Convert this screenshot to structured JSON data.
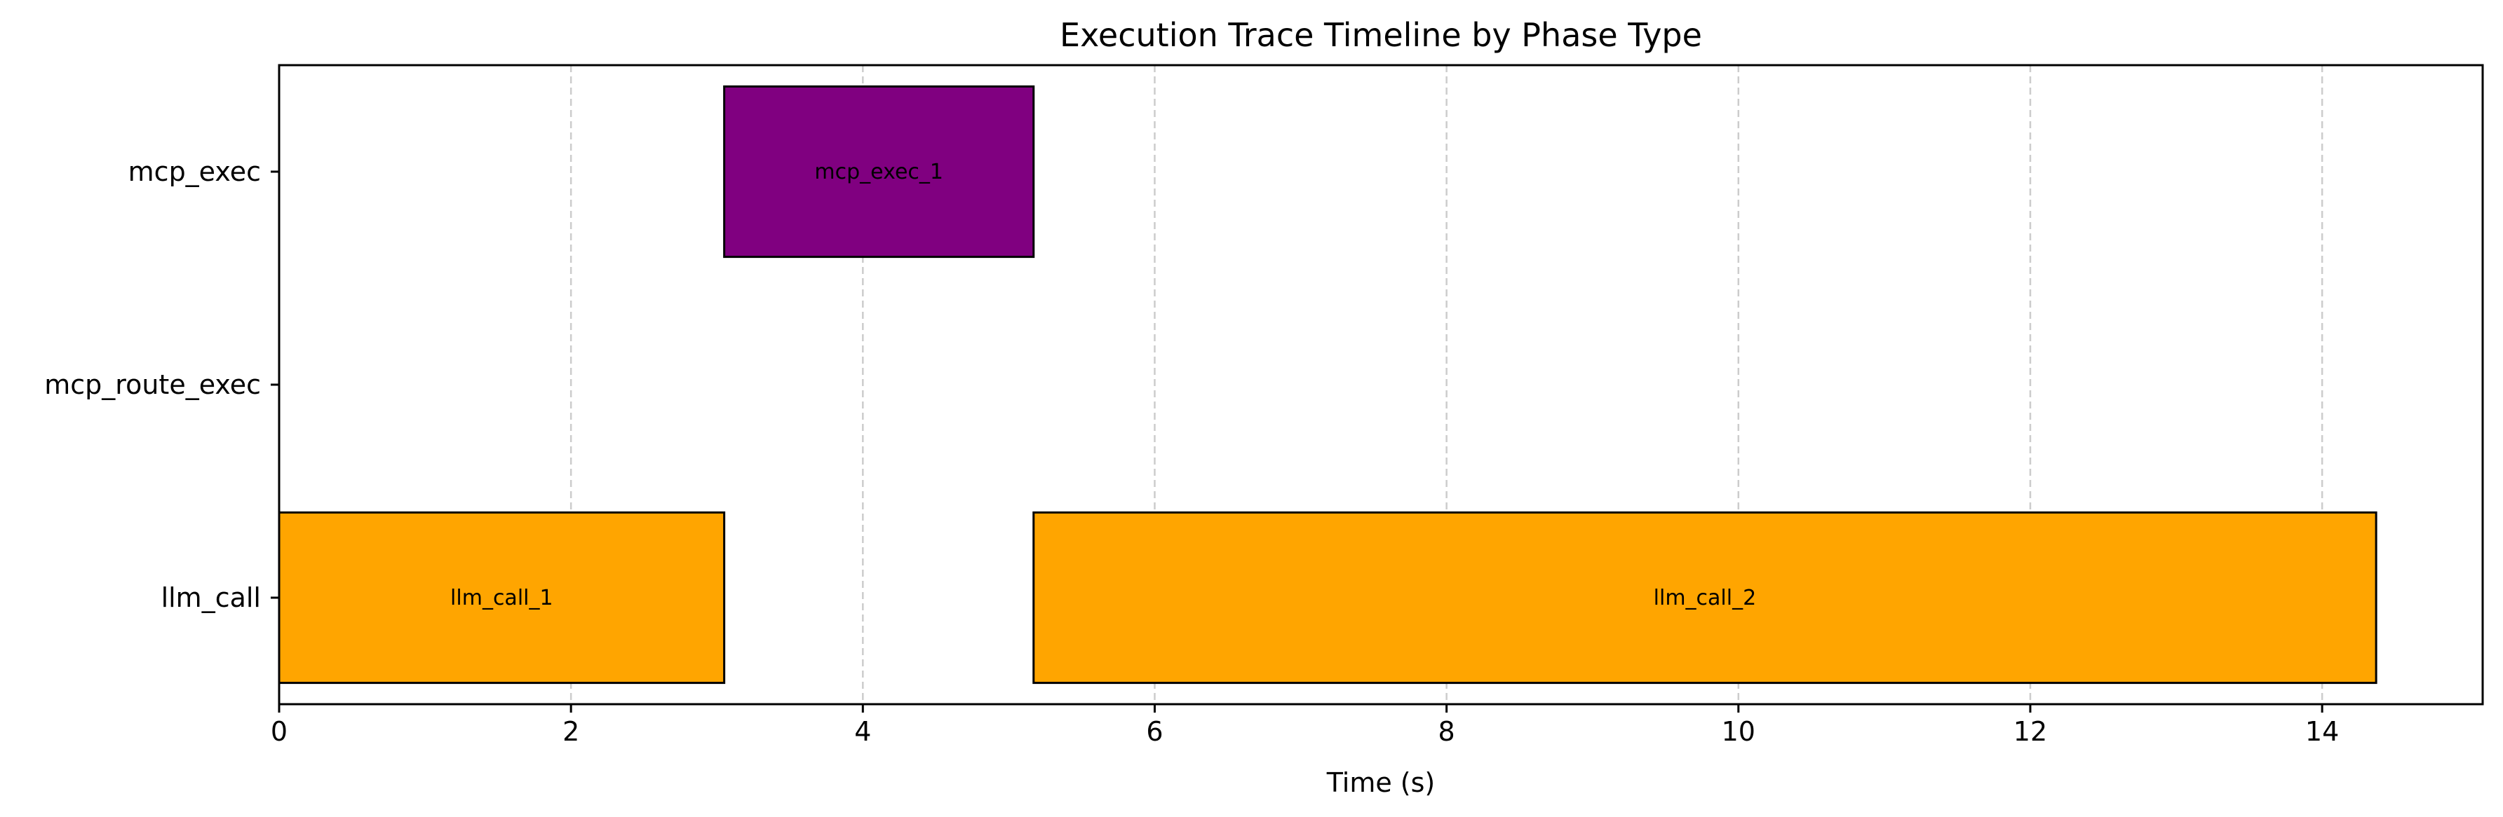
{
  "chart_data": {
    "type": "bar",
    "orientation": "horizontal-timeline",
    "title": "Execution Trace Timeline by Phase Type",
    "xlabel": "Time (s)",
    "ylabel": "",
    "xlim": [
      0,
      15.1
    ],
    "xticks": [
      0,
      2,
      4,
      6,
      8,
      10,
      12,
      14
    ],
    "categories": [
      "mcp_exec",
      "mcp_route_exec",
      "llm_call"
    ],
    "grid": "x-dashed",
    "bars": [
      {
        "label": "llm_call_1",
        "category": "llm_call",
        "start": 0.0,
        "end": 3.05,
        "color": "#ffa500"
      },
      {
        "label": "mcp_exec_1",
        "category": "mcp_exec",
        "start": 3.05,
        "end": 5.17,
        "color": "#800080"
      },
      {
        "label": "llm_call_2",
        "category": "llm_call",
        "start": 5.17,
        "end": 14.37,
        "color": "#ffa500"
      }
    ]
  }
}
